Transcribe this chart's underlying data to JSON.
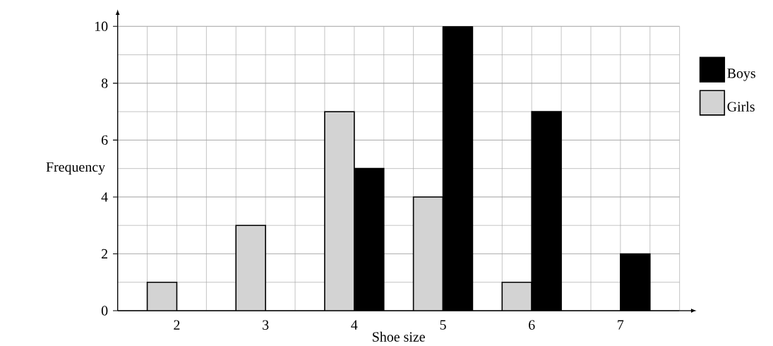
{
  "chart_data": {
    "type": "bar",
    "xlabel": "Shoe size",
    "ylabel": "Frequency",
    "categories": [
      "2",
      "3",
      "4",
      "5",
      "6",
      "7"
    ],
    "series": [
      {
        "name": "Girls",
        "color": "#d3d3d3",
        "values": [
          1,
          3,
          7,
          4,
          1,
          null
        ]
      },
      {
        "name": "Boys",
        "color": "#000000",
        "values": [
          null,
          null,
          5,
          10,
          7,
          2
        ]
      }
    ],
    "ylim": [
      0,
      10
    ],
    "yticks": [
      0,
      2,
      4,
      6,
      8,
      10
    ],
    "grid": true,
    "legend": "right"
  }
}
